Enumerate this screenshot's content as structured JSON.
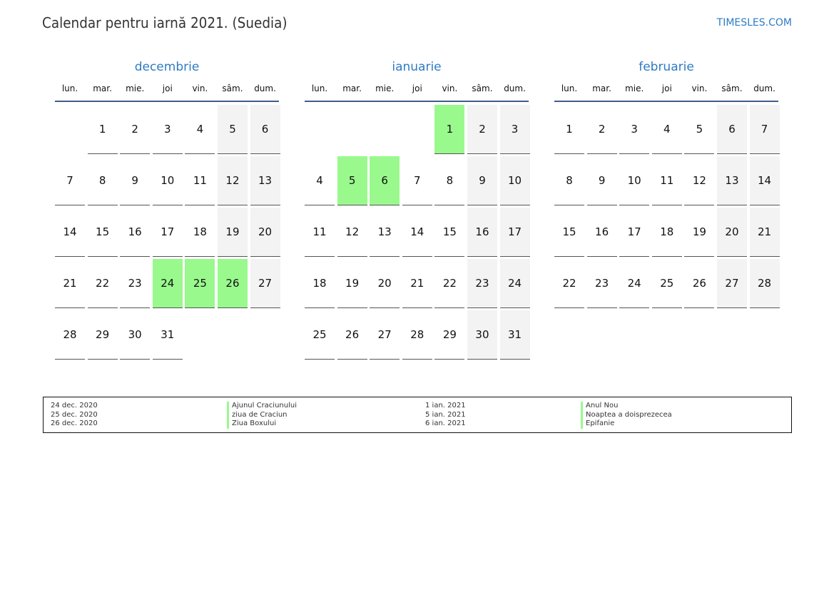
{
  "header": {
    "title": "Calendar pentru iarnă 2021. (Suedia)",
    "site": "TIMESLES.COM"
  },
  "weekdays": [
    "lun.",
    "mar.",
    "mie.",
    "joi",
    "vin.",
    "sâm.",
    "dum."
  ],
  "colors": {
    "accent": "#2e7bc4",
    "holiday": "#99f98d",
    "weekend": "#f3f3f3",
    "rule": "#3f5f8a"
  },
  "months": [
    {
      "name": "decembrie",
      "offset": 1,
      "days": 31,
      "holidays": [
        24,
        25,
        26
      ]
    },
    {
      "name": "ianuarie",
      "offset": 4,
      "days": 31,
      "holidays": [
        1,
        5,
        6
      ]
    },
    {
      "name": "februarie",
      "offset": 0,
      "days": 28,
      "holidays": []
    }
  ],
  "legend": [
    {
      "date": "24 dec. 2020",
      "name": "Ajunul Craciunului"
    },
    {
      "date": "25 dec. 2020",
      "name": "ziua de Craciun"
    },
    {
      "date": "26 dec. 2020",
      "name": "Ziua Boxului"
    },
    {
      "date": "1 ian. 2021",
      "name": "Anul Nou"
    },
    {
      "date": "5 ian. 2021",
      "name": "Noaptea a doisprezecea"
    },
    {
      "date": "6 ian. 2021",
      "name": "Epifanie"
    }
  ]
}
